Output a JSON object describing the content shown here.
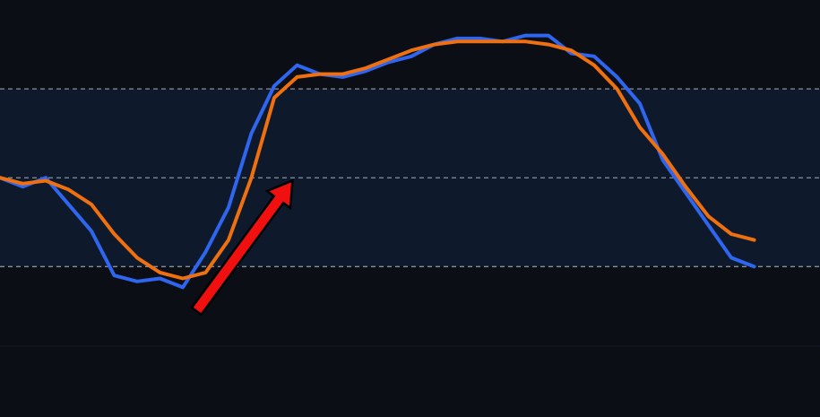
{
  "colors": {
    "background": "#0b0e14",
    "band": "#0e1a2b",
    "grid": "#a9b1bc",
    "fast_line": "#2f66f0",
    "slow_line": "#f07010",
    "arrow": "#f01010"
  },
  "chart_data": {
    "type": "line",
    "title": "",
    "xlabel": "",
    "ylabel": "",
    "grid": true,
    "band": [
      20,
      80
    ],
    "reference_lines": [
      20,
      50,
      80
    ],
    "ylim": [
      -2,
      110
    ],
    "xlim": [
      0,
      36
    ],
    "x": [
      0,
      1,
      2,
      3,
      4,
      5,
      6,
      7,
      8,
      9,
      10,
      11,
      12,
      13,
      14,
      15,
      16,
      17,
      18,
      19,
      20,
      21,
      22,
      23,
      24,
      25,
      26,
      27,
      28,
      29,
      30,
      31,
      32,
      33
    ],
    "series": [
      {
        "key": "fast",
        "values": [
          50,
          47,
          50,
          41,
          32,
          17,
          15,
          16,
          13,
          25,
          40,
          65,
          81,
          88,
          85,
          84,
          86,
          89,
          91,
          95,
          97,
          97,
          96,
          98,
          98,
          92,
          91,
          84,
          75,
          56,
          45,
          34,
          23,
          20
        ]
      },
      {
        "key": "slow",
        "values": [
          50,
          48,
          49,
          46,
          41,
          31,
          23,
          18,
          16,
          18,
          29,
          50,
          77,
          84,
          85,
          85,
          87,
          90,
          93,
          95,
          96,
          96,
          96,
          96,
          95,
          93,
          88,
          80,
          67,
          58,
          47,
          37,
          31,
          29
        ]
      }
    ],
    "annotations": [
      {
        "type": "arrow",
        "from": {
          "x": 8.6,
          "y": 5
        },
        "to": {
          "x": 12.8,
          "y": 49
        }
      }
    ]
  }
}
